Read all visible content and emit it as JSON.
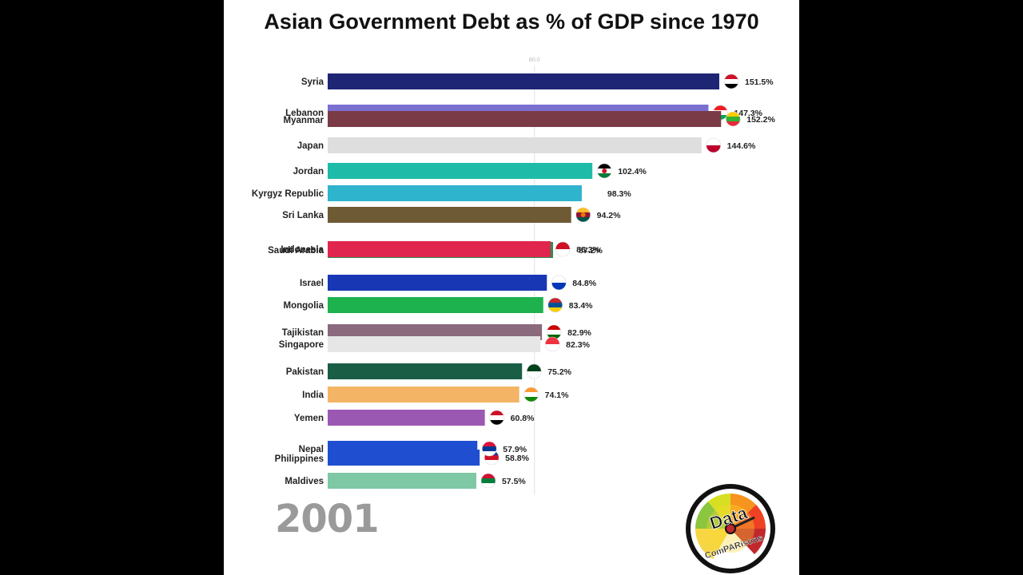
{
  "title": "Asian Government Debt as % of GDP since 1970",
  "year": "2001",
  "logo": {
    "top_word": "Data",
    "bottom_word": "ComPARisons"
  },
  "chart_data": {
    "type": "bar",
    "orientation": "horizontal",
    "title": "Asian Government Debt as % of GDP since 1970",
    "gridline_label": "80.0",
    "xlim": [
      0,
      151.5
    ],
    "value_suffix": "%",
    "bars": [
      {
        "name": "Syria",
        "value": 151.5,
        "label": "151.5%",
        "color": "#1f2575"
      },
      {
        "name": "Lebanon",
        "value": 147.3,
        "label": "147.3%",
        "color": "#7b6fd0"
      },
      {
        "name": "Myanmar",
        "value": 152.2,
        "label": "152.2%",
        "color": "#7a3b46"
      },
      {
        "name": "Japan",
        "value": 144.6,
        "label": "144.6%",
        "color": "#dedede"
      },
      {
        "name": "Jordan",
        "value": 102.4,
        "label": "102.4%",
        "color": "#1fbba9"
      },
      {
        "name": "Kyrgyz Republic",
        "value": 98.3,
        "label": "98.3%",
        "color": "#2eb4cc"
      },
      {
        "name": "Sri Lanka",
        "value": 94.2,
        "label": "94.2%",
        "color": "#6e5a34"
      },
      {
        "name": "Saudi Arabia",
        "value": 87.2,
        "label": "87.2%",
        "color": "#2f8f4e"
      },
      {
        "name": "Indonesia",
        "value": 86.3,
        "label": "86.3%",
        "color": "#e0264e"
      },
      {
        "name": "Israel",
        "value": 84.8,
        "label": "84.8%",
        "color": "#1737b5"
      },
      {
        "name": "Mongolia",
        "value": 83.4,
        "label": "83.4%",
        "color": "#1db24d"
      },
      {
        "name": "Tajikistan",
        "value": 82.9,
        "label": "82.9%",
        "color": "#8a6a7c"
      },
      {
        "name": "Singapore",
        "value": 82.3,
        "label": "82.3%",
        "color": "#e6e6e6"
      },
      {
        "name": "Pakistan",
        "value": 75.2,
        "label": "75.2%",
        "color": "#1a5e45"
      },
      {
        "name": "India",
        "value": 74.1,
        "label": "74.1%",
        "color": "#f4b466"
      },
      {
        "name": "Yemen",
        "value": 60.8,
        "label": "60.8%",
        "color": "#9b58b2"
      },
      {
        "name": "Philippines",
        "value": 58.8,
        "label": "58.8%",
        "color": "#1f4fd0"
      },
      {
        "name": "Nepal",
        "value": 57.9,
        "label": "57.9%",
        "color": "#1f4fd0"
      },
      {
        "name": "Maldives",
        "value": 57.5,
        "label": "57.5%",
        "color": "#7ec8a6"
      }
    ]
  },
  "flags": [
    {
      "country": "Syria",
      "colors": [
        "#ce1126",
        "#ffffff",
        "#000000"
      ]
    },
    {
      "country": "Lebanon",
      "colors": [
        "#ed1c24",
        "#ffffff",
        "#00a651"
      ]
    },
    {
      "country": "Myanmar",
      "colors": [
        "#fecb00",
        "#34b233",
        "#ea2839"
      ]
    },
    {
      "country": "Japan",
      "colors": [
        "#ffffff",
        "#bc002d"
      ]
    },
    {
      "country": "Jordan",
      "colors": [
        "#000000",
        "#ffffff",
        "#007a3d",
        "#ce1126"
      ]
    },
    {
      "country": "Sri Lanka",
      "colors": [
        "#ffbe29",
        "#8d153a",
        "#00534e",
        "#eb7400"
      ]
    },
    {
      "country": "Indonesia",
      "colors": [
        "#ce1126",
        "#ffffff"
      ]
    },
    {
      "country": "Israel",
      "colors": [
        "#ffffff",
        "#0038b8"
      ]
    },
    {
      "country": "Mongolia",
      "colors": [
        "#c4272f",
        "#015197",
        "#f9cf02"
      ]
    },
    {
      "country": "Tajikistan",
      "colors": [
        "#cc0000",
        "#ffffff",
        "#006600"
      ]
    },
    {
      "country": "Singapore",
      "colors": [
        "#ef3340",
        "#ffffff"
      ]
    },
    {
      "country": "Pakistan",
      "colors": [
        "#01411c",
        "#ffffff"
      ]
    },
    {
      "country": "India",
      "colors": [
        "#ff9933",
        "#ffffff",
        "#138808"
      ]
    },
    {
      "country": "Yemen",
      "colors": [
        "#ce1126",
        "#ffffff",
        "#000000"
      ]
    },
    {
      "country": "Nepal",
      "colors": [
        "#dc143c",
        "#003893",
        "#ffffff"
      ]
    },
    {
      "country": "Philippines",
      "colors": [
        "#0038a8",
        "#ce1126",
        "#ffffff"
      ]
    },
    {
      "country": "Maldives",
      "colors": [
        "#d21034",
        "#007e3a",
        "#ffffff"
      ]
    }
  ]
}
